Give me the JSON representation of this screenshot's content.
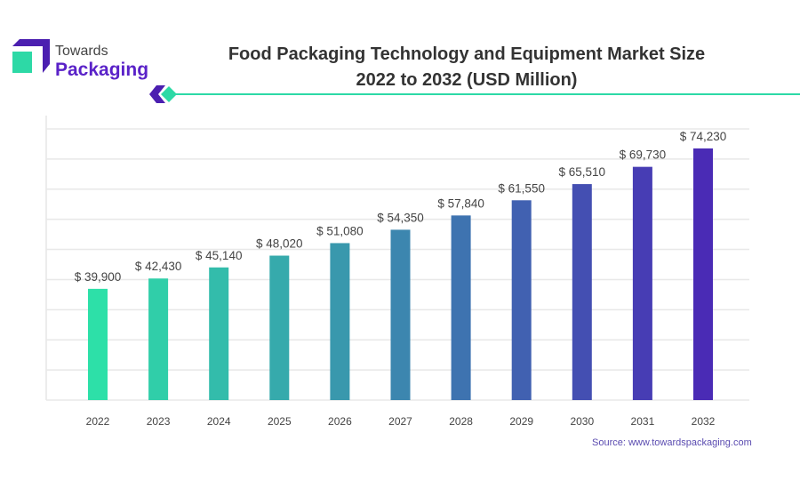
{
  "logo": {
    "line1": "Towards",
    "line2": "Packaging",
    "colors": {
      "purple": "#4b1fb0",
      "teal": "#2dd9a6"
    }
  },
  "title": {
    "line1": "Food Packaging Technology and Equipment Market Size",
    "line2": "2022 to 2032 (USD Million)"
  },
  "source": "Source: www.towardspackaging.com",
  "chart_data": {
    "type": "bar",
    "title": "Food Packaging Technology and Equipment Market Size 2022 to 2032 (USD Million)",
    "categories": [
      "2022",
      "2023",
      "2024",
      "2025",
      "2026",
      "2027",
      "2028",
      "2029",
      "2030",
      "2031",
      "2032"
    ],
    "values": [
      39900,
      42430,
      45140,
      48020,
      51080,
      54350,
      57840,
      61550,
      65510,
      69730,
      74230
    ],
    "labels": [
      "$ 39,900",
      "$ 42,430",
      "$ 45,140",
      "$ 48,020",
      "$ 51,080",
      "$ 54,350",
      "$ 57,840",
      "$ 61,550",
      "$ 65,510",
      "$ 69,730",
      "$ 74,230"
    ],
    "ylim": [
      12700,
      79000
    ],
    "grid": true,
    "colors": {
      "start": "#2de0a8",
      "end": "#4a2bb5"
    }
  }
}
